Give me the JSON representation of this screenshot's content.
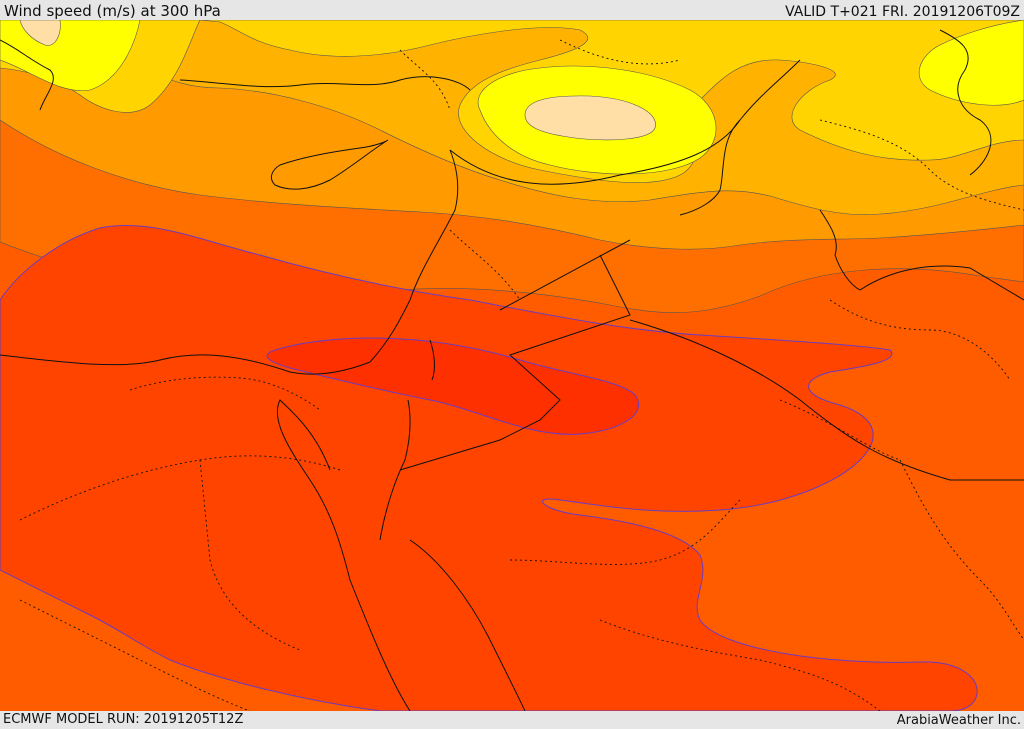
{
  "header": {
    "title": "Wind speed (m/s) at 300 hPa",
    "valid": "VALID T+021 FRI. 20191206T09Z"
  },
  "footer": {
    "model_run": "ECMWF MODEL RUN: 20191205T12Z",
    "credit": "ArabiaWeather Inc."
  },
  "map": {
    "field": "wind-speed",
    "level": "300 hPa",
    "palette": [
      "#ff9a00",
      "#ffb300",
      "#ffd400",
      "#ffff00",
      "#ffdfa5",
      "#ff6a00",
      "#ff5c00",
      "#ff4a00",
      "#ff3a00",
      "#ff2400"
    ]
  }
}
